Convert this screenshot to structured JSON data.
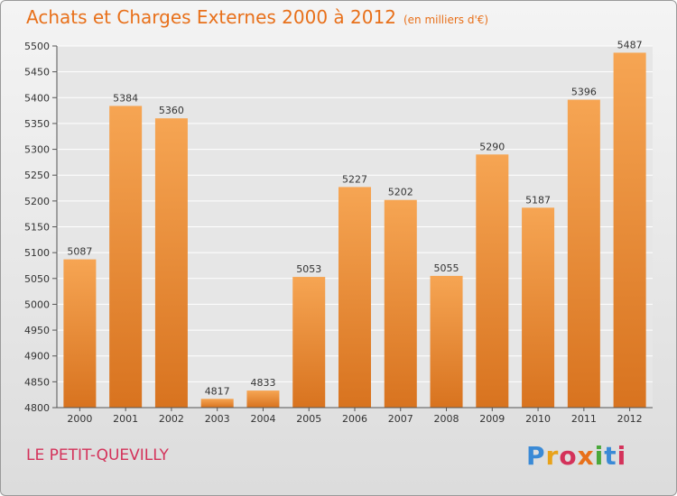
{
  "title": "Achats et Charges Externes 2000 à 2012",
  "subtitle": "(en milliers d'€)",
  "commune": "LE PETIT-QUEVILLY",
  "logo_text": "Proxiti",
  "colors": {
    "bar_light": "#f6a553",
    "bar_dark": "#d8731f",
    "title": "#e8701a",
    "commune": "#d4325a",
    "grid": "#ffffff"
  },
  "chart_data": {
    "type": "bar",
    "title": "Achats et Charges Externes 2000 à 2012",
    "subtitle": "(en milliers d'€)",
    "categories": [
      "2000",
      "2001",
      "2002",
      "2003",
      "2004",
      "2005",
      "2006",
      "2007",
      "2008",
      "2009",
      "2010",
      "2011",
      "2012"
    ],
    "values": [
      5087,
      5384,
      5360,
      4817,
      4833,
      5053,
      5227,
      5202,
      5055,
      5290,
      5187,
      5396,
      5487
    ],
    "ylim": [
      4800,
      5500
    ],
    "yticks": [
      4800,
      4850,
      4900,
      4950,
      5000,
      5050,
      5100,
      5150,
      5200,
      5250,
      5300,
      5350,
      5400,
      5450,
      5500
    ],
    "grid": true,
    "legend": "none"
  }
}
